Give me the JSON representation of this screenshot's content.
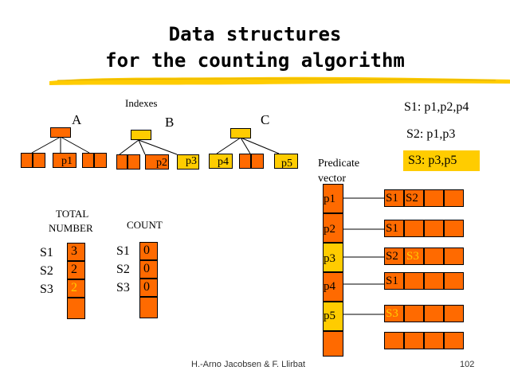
{
  "title_line1": "Data structures",
  "title_line2": "for the counting algorithm",
  "indexes_label": "Indexes",
  "trees": {
    "a": {
      "name": "A",
      "leaf_label": "p1"
    },
    "b": {
      "name": "B",
      "leaf_label_1": "p2",
      "leaf_label_2": "p3"
    },
    "c": {
      "name": "C",
      "leaf_label_1": "p4",
      "leaf_label_2": "p5"
    }
  },
  "subscriptions": {
    "s1": "S1: p1,p2,p4",
    "s2": "S2: p1,p3",
    "s3": "S3: p3,p5"
  },
  "predicate_vector_label": "Predicate vector",
  "predicates": [
    "p1",
    "p2",
    "p3",
    "p4",
    "p5"
  ],
  "predicate_lists": [
    [
      "S1",
      "S2"
    ],
    [
      "S1"
    ],
    [
      "S2",
      "S3"
    ],
    [
      "S1"
    ],
    [
      "S3"
    ],
    []
  ],
  "total_number": {
    "label_line1": "TOTAL",
    "label_line2": "NUMBER",
    "rows": [
      {
        "name": "S1",
        "value": "3"
      },
      {
        "name": "S2",
        "value": "2"
      },
      {
        "name": "S3",
        "value": "2"
      }
    ]
  },
  "count": {
    "label": "COUNT",
    "rows": [
      {
        "name": "S1",
        "value": "0"
      },
      {
        "name": "S2",
        "value": "0"
      },
      {
        "name": "S3",
        "value": "0"
      }
    ]
  },
  "footer_author": "H.-Arno Jacobsen & F. Llirbat",
  "page_number": "102",
  "colors": {
    "orange": "#ff6a00",
    "yellow": "#ffcc00",
    "highlight_text": "#ffcc00"
  }
}
